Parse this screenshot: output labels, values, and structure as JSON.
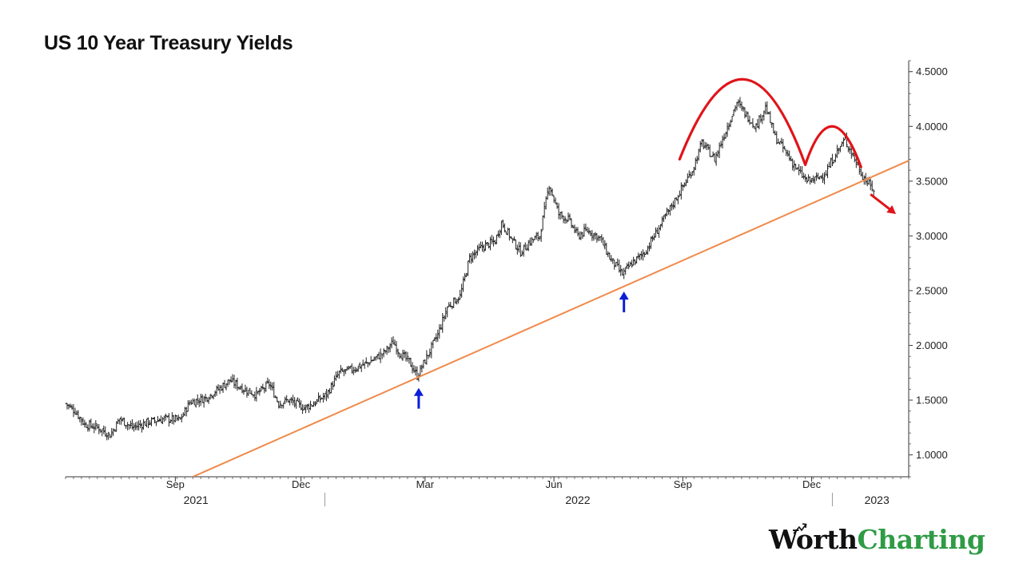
{
  "page": {
    "title": "US 10 Year Treasury Yields"
  },
  "brand": {
    "word1": "Worth",
    "word2": "Charting",
    "colors": {
      "word1": "#111111",
      "word2": "#2f9b46"
    }
  },
  "chart_data": {
    "type": "line",
    "style": "ohlc-bars",
    "title": "US 10 Year Treasury Yields",
    "xlabel": "",
    "ylabel": "",
    "ylim": [
      0.8,
      4.6
    ],
    "xlim": [
      0,
      530
    ],
    "x_unit": "trading days from 2021-07-01",
    "y_ticks": [
      1.0,
      1.5,
      2.0,
      2.5,
      3.0,
      3.5,
      4.0,
      4.5
    ],
    "y_tick_labels": [
      "1.0000",
      "1.5000",
      "2.0000",
      "2.5000",
      "3.0000",
      "3.5000",
      "4.0000",
      "4.5000"
    ],
    "y_axis_side": "right",
    "month_ticks": [
      {
        "x": 69,
        "label": "Sep"
      },
      {
        "x": 148,
        "label": "Dec"
      },
      {
        "x": 226,
        "label": "Mar"
      },
      {
        "x": 307,
        "label": "Jun"
      },
      {
        "x": 388,
        "label": "Sep"
      },
      {
        "x": 469,
        "label": "Dec"
      }
    ],
    "year_labels": [
      {
        "x": 82,
        "label": "2021"
      },
      {
        "x": 322,
        "label": "2022"
      },
      {
        "x": 510,
        "label": "2023"
      }
    ],
    "year_dividers": [
      163,
      482
    ],
    "price_color": "#222222",
    "series_path": [
      [
        0,
        1.47
      ],
      [
        6,
        1.4
      ],
      [
        12,
        1.28
      ],
      [
        20,
        1.25
      ],
      [
        28,
        1.18
      ],
      [
        34,
        1.33
      ],
      [
        42,
        1.25
      ],
      [
        52,
        1.3
      ],
      [
        62,
        1.33
      ],
      [
        72,
        1.32
      ],
      [
        78,
        1.48
      ],
      [
        88,
        1.52
      ],
      [
        98,
        1.62
      ],
      [
        103,
        1.68
      ],
      [
        112,
        1.6
      ],
      [
        120,
        1.55
      ],
      [
        128,
        1.65
      ],
      [
        134,
        1.47
      ],
      [
        140,
        1.5
      ],
      [
        150,
        1.43
      ],
      [
        156,
        1.47
      ],
      [
        164,
        1.55
      ],
      [
        172,
        1.75
      ],
      [
        180,
        1.78
      ],
      [
        190,
        1.84
      ],
      [
        200,
        1.93
      ],
      [
        206,
        2.03
      ],
      [
        210,
        1.93
      ],
      [
        216,
        1.85
      ],
      [
        221,
        1.72
      ],
      [
        228,
        1.92
      ],
      [
        234,
        2.1
      ],
      [
        240,
        2.35
      ],
      [
        248,
        2.45
      ],
      [
        254,
        2.8
      ],
      [
        262,
        2.9
      ],
      [
        270,
        2.95
      ],
      [
        274,
        3.12
      ],
      [
        280,
        2.98
      ],
      [
        286,
        2.85
      ],
      [
        292,
        2.95
      ],
      [
        298,
        3.0
      ],
      [
        304,
        3.47
      ],
      [
        310,
        3.2
      ],
      [
        316,
        3.15
      ],
      [
        322,
        3.0
      ],
      [
        328,
        3.05
      ],
      [
        336,
        2.98
      ],
      [
        342,
        2.8
      ],
      [
        350,
        2.65
      ],
      [
        356,
        2.75
      ],
      [
        364,
        2.85
      ],
      [
        372,
        3.05
      ],
      [
        380,
        3.25
      ],
      [
        388,
        3.45
      ],
      [
        394,
        3.6
      ],
      [
        400,
        3.85
      ],
      [
        408,
        3.7
      ],
      [
        416,
        4.0
      ],
      [
        422,
        4.22
      ],
      [
        428,
        4.1
      ],
      [
        434,
        4.0
      ],
      [
        440,
        4.18
      ],
      [
        446,
        3.9
      ],
      [
        452,
        3.78
      ],
      [
        460,
        3.6
      ],
      [
        466,
        3.5
      ],
      [
        472,
        3.52
      ],
      [
        478,
        3.58
      ],
      [
        484,
        3.75
      ],
      [
        490,
        3.88
      ],
      [
        496,
        3.7
      ],
      [
        501,
        3.55
      ],
      [
        506,
        3.45
      ],
      [
        508,
        3.42
      ]
    ],
    "annotations": {
      "trendline": {
        "color": "#f08a4b",
        "from": [
          80,
          0.8
        ],
        "to": [
          532,
          3.7
        ]
      },
      "head_and_shoulders_arcs": {
        "color": "#e0141a",
        "peaks": [
          {
            "from": [
              386,
              3.7
            ],
            "top": [
              426,
              4.43
            ],
            "to": [
              465,
              3.65
            ]
          },
          {
            "from": [
              465,
              3.65
            ],
            "top": [
              482,
              4.0
            ],
            "to": [
              500,
              3.63
            ]
          }
        ]
      },
      "down_arrow": {
        "color": "#e0141a",
        "from": [
          506,
          3.38
        ],
        "to": [
          522,
          3.2
        ]
      },
      "support_arrows": {
        "color": "#0a1fd8",
        "points": [
          {
            "x": 222,
            "y": 1.67
          },
          {
            "x": 351,
            "y": 2.55
          }
        ]
      }
    }
  }
}
